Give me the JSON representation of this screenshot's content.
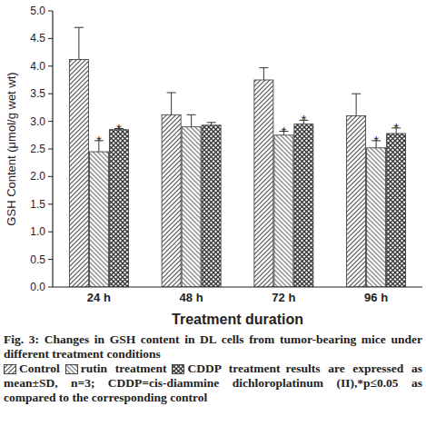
{
  "chart_data": {
    "type": "bar",
    "y_label": "GSH Content (μmol/g wet wt)",
    "x_label": "Treatment duration",
    "caption": "Fig. 3: Changes in GSH content in DL cells from tumor-bearing mice under different treatment conditions",
    "note": "results are expressed as mean±SD, n=3; CDDP=cis-diammine dichloroplatinum (II),*p≤0.05 as compared to the corresponding control",
    "categories": [
      "24 h",
      "48 h",
      "72 h",
      "96 h"
    ],
    "series": [
      {
        "name": "Control",
        "color": "#555555",
        "values": [
          4.12,
          3.12,
          3.75,
          3.1
        ],
        "errors": [
          0.58,
          0.4,
          0.22,
          0.4
        ],
        "significance": [
          null,
          null,
          null,
          null
        ]
      },
      {
        "name": "rutin treatment",
        "color": "#8a8a8a",
        "values": [
          2.45,
          2.9,
          2.75,
          2.52
        ],
        "errors": [
          0.2,
          0.22,
          0.07,
          0.13
        ],
        "significance": [
          "*",
          null,
          "*",
          "*"
        ]
      },
      {
        "name": "CDDP treatment",
        "color": "#333333",
        "values": [
          2.85,
          2.93,
          2.95,
          2.78
        ],
        "errors": [
          0.02,
          0.05,
          0.07,
          0.1
        ],
        "significance": [
          "*",
          null,
          "*",
          "*"
        ]
      }
    ],
    "ylim": [
      0,
      5
    ],
    "yticks": [
      {
        "value": 0,
        "label": "0.0"
      },
      {
        "value": 0.5,
        "label": "0.5"
      },
      {
        "value": 1,
        "label": "1.0"
      },
      {
        "value": 1.5,
        "label": "1.5"
      },
      {
        "value": 2,
        "label": "2.0"
      },
      {
        "value": 2.5,
        "label": "2.5"
      },
      {
        "value": 3,
        "label": "3.0"
      },
      {
        "value": 3.5,
        "label": "3.5"
      },
      {
        "value": 4,
        "label": "4.0"
      },
      {
        "value": 4.5,
        "label": "4.5"
      },
      {
        "value": 5,
        "label": "5.0"
      }
    ],
    "grid": false
  }
}
